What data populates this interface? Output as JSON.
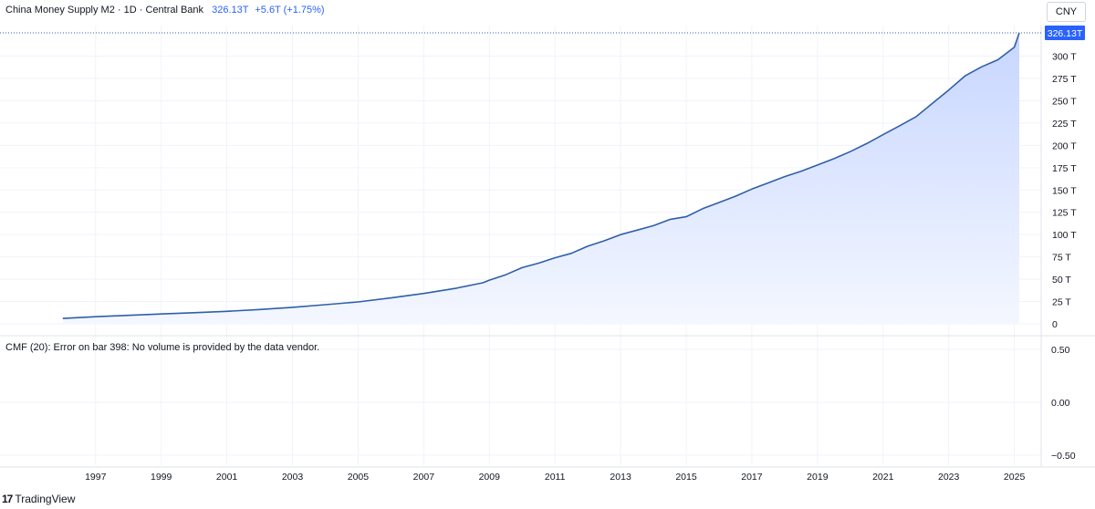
{
  "legend": {
    "symbol": "China Money Supply M2 · 1D · Central Bank",
    "value": "326.13T",
    "change": "+5.6T (+1.75%)"
  },
  "currency_button": "CNY",
  "last_price_label": "326.13T",
  "indicator_message": "CMF (20): Error on bar 398: No volume is provided by the data vendor.",
  "branding": {
    "logo": "17",
    "name": "TradingView"
  },
  "colors": {
    "line": "#2f5fa8",
    "fill_top": "#c7d6ff",
    "fill_bottom": "#f4f7ff",
    "price_label_bg": "#2962ff"
  },
  "chart_data": [
    {
      "type": "area",
      "title": "China Money Supply M2",
      "ylim": [
        0,
        330
      ],
      "y_unit": "T",
      "y_ticks": [
        0,
        25,
        50,
        75,
        100,
        125,
        150,
        175,
        200,
        225,
        250,
        275,
        300
      ],
      "y_tick_labels": [
        "0",
        "25 T",
        "50 T",
        "75 T",
        "100 T",
        "125 T",
        "150 T",
        "175 T",
        "200 T",
        "225 T",
        "250 T",
        "275 T",
        "300 T"
      ],
      "x_tick_labels": [
        "1997",
        "1999",
        "2001",
        "2003",
        "2005",
        "2007",
        "2009",
        "2011",
        "2013",
        "2015",
        "2017",
        "2019",
        "2021",
        "2023",
        "2025"
      ],
      "grid": true,
      "series": [
        {
          "x": [
            1996.0,
            1997,
            1998,
            1999,
            2000,
            2001,
            2002,
            2003,
            2004,
            2005,
            2006,
            2007,
            2008,
            2008.8,
            2009.0,
            2009.5,
            2010,
            2010.5,
            2011,
            2011.5,
            2012,
            2012.5,
            2013,
            2013.5,
            2014,
            2014.5,
            2015,
            2015.5,
            2016,
            2016.5,
            2017,
            2017.5,
            2018,
            2018.5,
            2019,
            2019.5,
            2020,
            2020.5,
            2021,
            2021.5,
            2022,
            2022.5,
            2023,
            2023.5,
            2024,
            2024.5,
            2025,
            2025.15
          ],
          "values": [
            6,
            8,
            9.5,
            11,
            12.5,
            14,
            16,
            18.5,
            21.5,
            24.5,
            29,
            34,
            40,
            46,
            49,
            55,
            63,
            68,
            74,
            79,
            87,
            93,
            100,
            105,
            110,
            117,
            120,
            129,
            136,
            143,
            151,
            158,
            165,
            171,
            178,
            185,
            193,
            202,
            212,
            222,
            232,
            247,
            262,
            278,
            288,
            296,
            310,
            326.13
          ]
        }
      ]
    },
    {
      "type": "line",
      "title": "CMF (20)",
      "ylim": [
        -0.6,
        0.6
      ],
      "y_ticks": [
        0.5,
        0.0,
        -0.5
      ],
      "y_tick_labels": [
        "0.50",
        "0.00",
        "−0.50"
      ],
      "series": []
    }
  ]
}
